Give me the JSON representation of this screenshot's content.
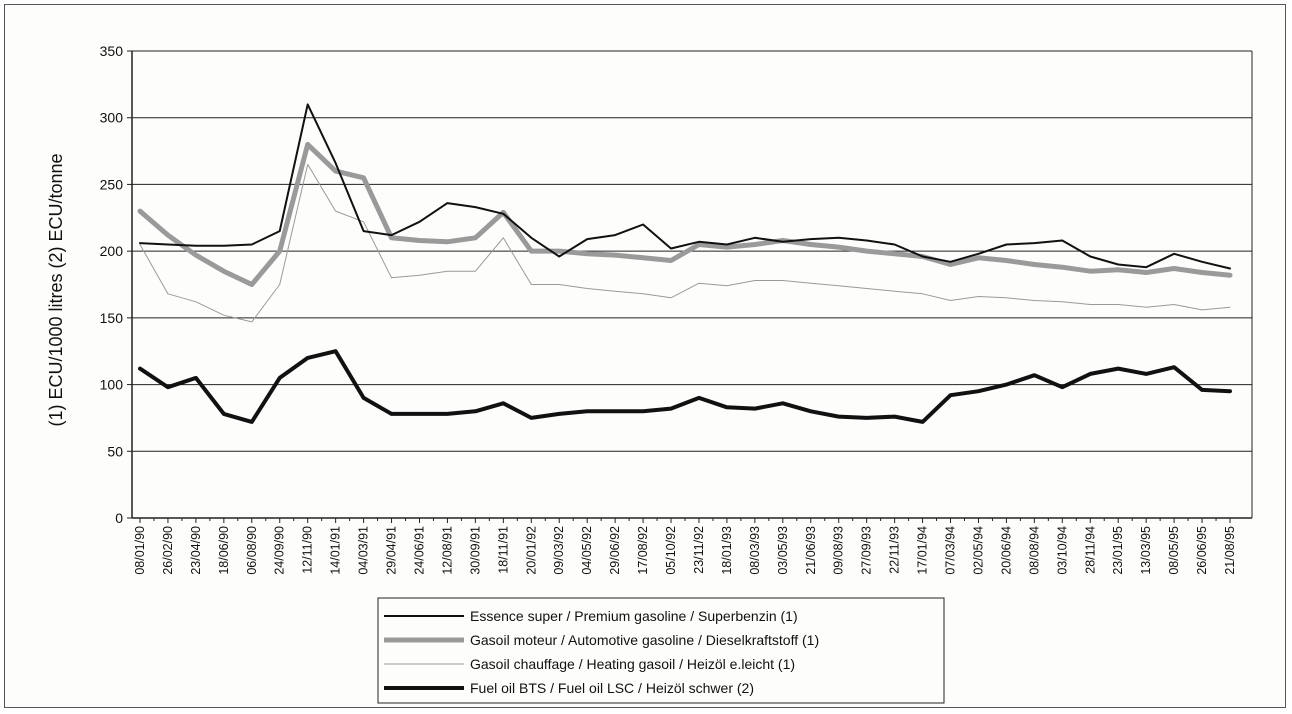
{
  "chart_data": {
    "type": "line",
    "ylabel": "(1) ECU/1000 litres (2) ECU/tonne",
    "ylim": [
      0,
      350
    ],
    "yticks": [
      0,
      50,
      100,
      150,
      200,
      250,
      300,
      350
    ],
    "grid": true,
    "legend_position": "bottom",
    "x": [
      "08/01/90",
      "26/02/90",
      "23/04/90",
      "18/06/90",
      "06/08/90",
      "24/09/90",
      "12/11/90",
      "14/01/91",
      "04/03/91",
      "29/04/91",
      "24/06/91",
      "12/08/91",
      "30/09/91",
      "18/11/91",
      "20/01/92",
      "09/03/92",
      "04/05/92",
      "29/06/92",
      "17/08/92",
      "05/10/92",
      "23/11/92",
      "18/01/93",
      "08/03/93",
      "03/05/93",
      "21/06/93",
      "09/08/93",
      "27/09/93",
      "22/11/93",
      "17/01/94",
      "07/03/94",
      "02/05/94",
      "20/06/94",
      "08/08/94",
      "03/10/94",
      "28/11/94",
      "23/01/95",
      "13/03/95",
      "08/05/95",
      "26/06/95",
      "21/08/95"
    ],
    "series": [
      {
        "name": "Essence super / Premium gasoline / Superbenzin (1)",
        "color": "#111111",
        "width": 2,
        "values": [
          206,
          205,
          204,
          204,
          205,
          215,
          310,
          266,
          215,
          212,
          222,
          236,
          233,
          228,
          210,
          196,
          209,
          212,
          220,
          202,
          207,
          205,
          210,
          207,
          209,
          210,
          208,
          205,
          196,
          192,
          198,
          205,
          206,
          208,
          196,
          190,
          188,
          198,
          192,
          187
        ]
      },
      {
        "name": "Gasoil moteur / Automotive gasoline / Dieselkraftstoff (1)",
        "color": "#9a9a9a",
        "width": 5,
        "values": [
          230,
          212,
          197,
          185,
          175,
          200,
          280,
          260,
          255,
          210,
          208,
          207,
          210,
          229,
          200,
          200,
          198,
          197,
          195,
          193,
          205,
          203,
          205,
          208,
          205,
          203,
          200,
          198,
          196,
          190,
          195,
          193,
          190,
          188,
          185,
          186,
          184,
          187,
          184,
          182
        ]
      },
      {
        "name": "Gasoil chauffage / Heating gasoil / Heizöl e.leicht (1)",
        "color": "#9a9a9a",
        "width": 1,
        "values": [
          205,
          168,
          162,
          152,
          147,
          175,
          265,
          230,
          222,
          180,
          182,
          185,
          185,
          210,
          175,
          175,
          172,
          170,
          168,
          165,
          176,
          174,
          178,
          178,
          176,
          174,
          172,
          170,
          168,
          163,
          166,
          165,
          163,
          162,
          160,
          160,
          158,
          160,
          156,
          158
        ]
      },
      {
        "name": "Fuel oil BTS / Fuel oil LSC / Heizöl schwer (2)",
        "color": "#111111",
        "width": 4,
        "values": [
          112,
          98,
          105,
          78,
          72,
          105,
          120,
          125,
          90,
          78,
          78,
          78,
          80,
          86,
          75,
          78,
          80,
          80,
          80,
          82,
          90,
          83,
          82,
          86,
          80,
          76,
          75,
          76,
          72,
          92,
          95,
          100,
          107,
          98,
          108,
          112,
          108,
          113,
          96,
          95
        ]
      }
    ]
  }
}
